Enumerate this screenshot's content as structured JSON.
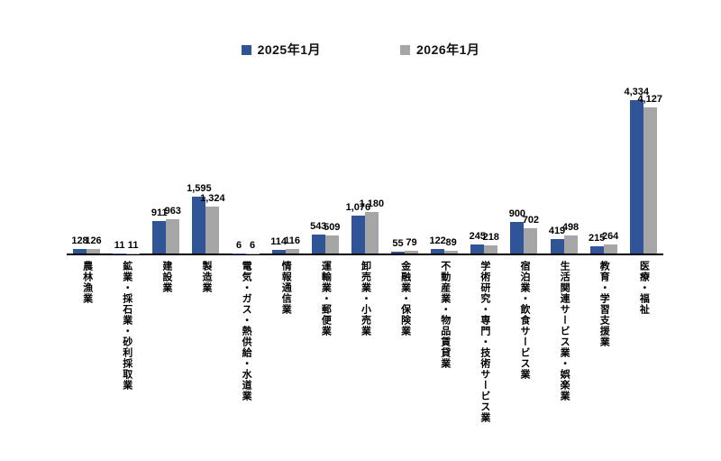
{
  "chart_data": {
    "type": "bar",
    "title": "",
    "categories": [
      "農林漁業",
      "鉱業・採石業・砂利採取業",
      "建設業",
      "製造業",
      "電気・ガス・熱供給・水道業",
      "情報通信業",
      "運輸業・郵便業",
      "卸売業・小売業",
      "金融業・保険業",
      "不動産業・物品賃貸業",
      "学術研究・専門・技術サービス業",
      "宿泊業・飲食サービス業",
      "生活関連サービス業・娯楽業",
      "教育・学習支援業",
      "医療・福祉"
    ],
    "series": [
      {
        "name": "2025年1月",
        "color": "#2F5597",
        "values": [
          128,
          11,
          911,
          1595,
          6,
          114,
          543,
          1076,
          55,
          122,
          245,
          900,
          419,
          215,
          4334
        ]
      },
      {
        "name": "2026年1月",
        "color": "#A6A6A6",
        "values": [
          126,
          11,
          963,
          1324,
          6,
          116,
          509,
          1180,
          79,
          89,
          218,
          702,
          498,
          264,
          4127
        ]
      }
    ],
    "value_labels": true,
    "ylim": [
      0,
      4500
    ],
    "grid": false,
    "legend_position": "top",
    "background": "#FFFFFF",
    "axis_color": "#000000",
    "label_color": "#000000"
  }
}
